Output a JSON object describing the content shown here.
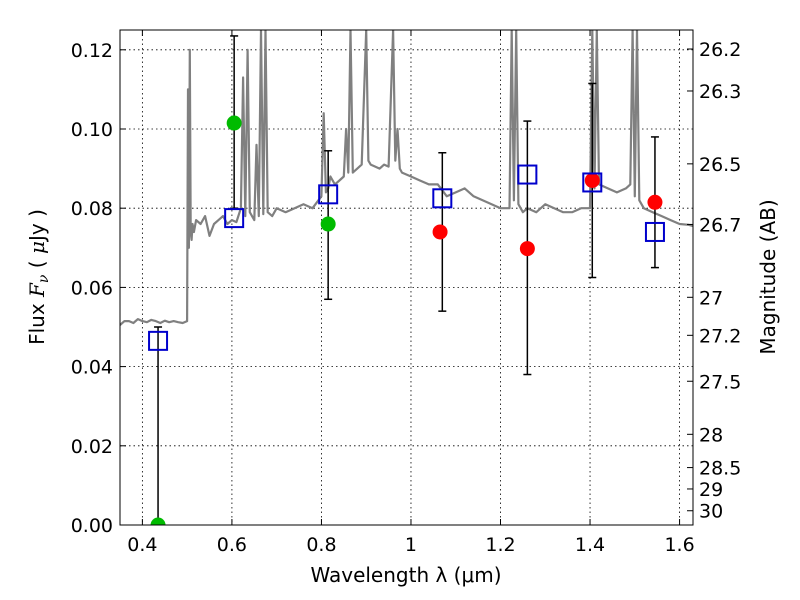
{
  "chart_data": {
    "type": "scatter",
    "xlabel": "Wavelength  λ (μm)",
    "ylabel_left": "Flux  F_ν  ( μJy )",
    "ylabel_left_parts": {
      "pre": "Flux  ",
      "var": "F",
      "sub": "ν",
      "mid": "  ( ",
      "mu": "μ",
      "post": "Jy )"
    },
    "ylabel_right": "Magnitude (AB)",
    "xlim": [
      0.35,
      1.63
    ],
    "ylim": [
      0.0,
      0.125
    ],
    "x_ticks": [
      0.4,
      0.6,
      0.8,
      1.0,
      1.2,
      1.4,
      1.6
    ],
    "x_tick_labels": [
      "0.4",
      "0.6",
      "0.8",
      "1",
      "1.2",
      "1.4",
      "1.6"
    ],
    "y_ticks": [
      0.0,
      0.02,
      0.04,
      0.06,
      0.08,
      0.1,
      0.12
    ],
    "y_tick_labels": [
      "0.00",
      "0.02",
      "0.04",
      "0.06",
      "0.08",
      "0.10",
      "0.12"
    ],
    "right_ticks": [
      {
        "label": "26.2",
        "flux": 0.1202
      },
      {
        "label": "26.3",
        "flux": 0.1096
      },
      {
        "label": "26.5",
        "flux": 0.0912
      },
      {
        "label": "26.7",
        "flux": 0.0759
      },
      {
        "label": "27",
        "flux": 0.0575
      },
      {
        "label": "27.2",
        "flux": 0.0479
      },
      {
        "label": "27.5",
        "flux": 0.0363
      },
      {
        "label": "28",
        "flux": 0.0229
      },
      {
        "label": "28.5",
        "flux": 0.0145
      },
      {
        "label": "29",
        "flux": 0.0091
      },
      {
        "label": "30",
        "flux": 0.0036
      }
    ],
    "grid": true,
    "colors": {
      "spectrum": "#808080",
      "model_points": "#0000cc",
      "observed_red": "#ff0000",
      "observed_green": "#00bb00",
      "errorbars": "#000000"
    },
    "series": [
      {
        "name": "",
        "kind": "line",
        "color": "#808080",
        "x": [
          0.35,
          0.36,
          0.37,
          0.38,
          0.39,
          0.4,
          0.41,
          0.42,
          0.43,
          0.44,
          0.45,
          0.46,
          0.47,
          0.48,
          0.49,
          0.5,
          0.502,
          0.504,
          0.506,
          0.508,
          0.51,
          0.512,
          0.515,
          0.52,
          0.53,
          0.54,
          0.55,
          0.56,
          0.57,
          0.58,
          0.59,
          0.6,
          0.61,
          0.62,
          0.625,
          0.63,
          0.635,
          0.64,
          0.65,
          0.655,
          0.66,
          0.665,
          0.67,
          0.675,
          0.68,
          0.69,
          0.7,
          0.72,
          0.74,
          0.76,
          0.78,
          0.8,
          0.805,
          0.81,
          0.815,
          0.82,
          0.83,
          0.84,
          0.85,
          0.855,
          0.86,
          0.865,
          0.87,
          0.88,
          0.89,
          0.9,
          0.905,
          0.91,
          0.92,
          0.93,
          0.94,
          0.95,
          0.96,
          0.965,
          0.97,
          0.975,
          0.98,
          1.0,
          1.02,
          1.04,
          1.06,
          1.08,
          1.1,
          1.12,
          1.14,
          1.16,
          1.18,
          1.2,
          1.22,
          1.225,
          1.23,
          1.235,
          1.24,
          1.25,
          1.26,
          1.28,
          1.3,
          1.32,
          1.34,
          1.36,
          1.38,
          1.4,
          1.405,
          1.41,
          1.415,
          1.42,
          1.44,
          1.46,
          1.48,
          1.49,
          1.495,
          1.5,
          1.505,
          1.51,
          1.52,
          1.54,
          1.56,
          1.58,
          1.6,
          1.62,
          1.63
        ],
        "y": [
          0.0505,
          0.0515,
          0.0515,
          0.051,
          0.052,
          0.0515,
          0.0512,
          0.0518,
          0.0515,
          0.051,
          0.0516,
          0.0512,
          0.0515,
          0.0512,
          0.051,
          0.0515,
          0.11,
          0.07,
          0.12,
          0.074,
          0.072,
          0.076,
          0.074,
          0.077,
          0.076,
          0.078,
          0.073,
          0.076,
          0.077,
          0.078,
          0.076,
          0.077,
          0.0765,
          0.08,
          0.113,
          0.078,
          0.12,
          0.079,
          0.077,
          0.096,
          0.078,
          0.125,
          0.0785,
          0.125,
          0.079,
          0.078,
          0.08,
          0.079,
          0.08,
          0.081,
          0.08,
          0.083,
          0.104,
          0.084,
          0.085,
          0.088,
          0.086,
          0.087,
          0.088,
          0.1,
          0.089,
          0.125,
          0.089,
          0.09,
          0.091,
          0.125,
          0.092,
          0.091,
          0.0905,
          0.09,
          0.091,
          0.0905,
          0.125,
          0.092,
          0.1,
          0.09,
          0.089,
          0.088,
          0.087,
          0.086,
          0.086,
          0.083,
          0.084,
          0.085,
          0.083,
          0.082,
          0.081,
          0.08,
          0.08,
          0.125,
          0.082,
          0.125,
          0.081,
          0.079,
          0.08,
          0.079,
          0.081,
          0.08,
          0.079,
          0.079,
          0.08,
          0.08,
          0.125,
          0.085,
          0.125,
          0.086,
          0.085,
          0.084,
          0.085,
          0.086,
          0.125,
          0.083,
          0.125,
          0.082,
          0.08,
          0.079,
          0.078,
          0.077,
          0.076,
          0.0758,
          0.0755
        ]
      },
      {
        "name": "",
        "kind": "open-squares",
        "color": "#0000cc",
        "x": [
          0.435,
          0.605,
          0.815,
          1.07,
          1.26,
          1.405,
          1.545
        ],
        "y": [
          0.0465,
          0.0775,
          0.0835,
          0.0825,
          0.0885,
          0.0865,
          0.074
        ],
        "err_low": [
          0.0,
          0.08,
          0.057,
          0.054,
          0.038,
          0.0625,
          0.065
        ],
        "err_high": [
          0.05,
          0.1235,
          0.0945,
          0.094,
          0.102,
          0.1115,
          0.098
        ]
      },
      {
        "name": "",
        "kind": "filled-circles",
        "color": "#ff0000",
        "x": [
          1.065,
          1.26,
          1.405,
          1.545
        ],
        "y": [
          0.074,
          0.0698,
          0.087,
          0.0815
        ]
      },
      {
        "name": "",
        "kind": "filled-circles",
        "color": "#00bb00",
        "x": [
          0.435,
          0.605,
          0.815
        ],
        "y": [
          0.0,
          0.1015,
          0.076
        ]
      }
    ]
  }
}
